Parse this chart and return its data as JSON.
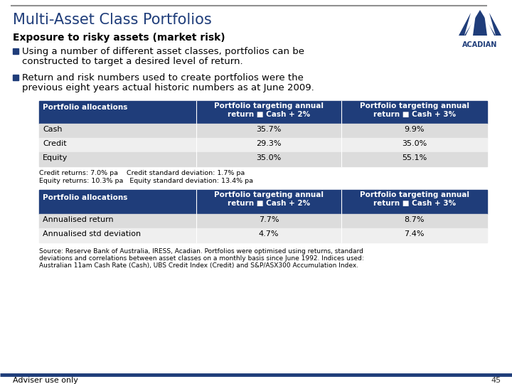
{
  "title": "Multi-Asset Class Portfolios",
  "subtitle": "Exposure to risky assets (market risk)",
  "bullet1_line1": "Using a number of different asset classes, portfolios can be",
  "bullet1_line2": "constructed to target a desired level of return.",
  "bullet2_line1": "Return and risk numbers used to create portfolios were the",
  "bullet2_line2": "previous eight years actual historic numbers as at June 2009.",
  "header_bg": "#1F3D7A",
  "header_text_color": "#FFFFFF",
  "row_bg_odd": "#DCDCDC",
  "row_bg_even": "#EFEFEF",
  "table1_header": [
    "Portfolio allocations",
    "Portfolio targeting annual\nreturn ■ Cash + 2%",
    "Portfolio targeting annual\nreturn ■ Cash + 3%"
  ],
  "table1_rows": [
    [
      "Cash",
      "35.7%",
      "9.9%"
    ],
    [
      "Credit",
      "29.3%",
      "35.0%"
    ],
    [
      "Equity",
      "35.0%",
      "55.1%"
    ]
  ],
  "notes_line1": "Credit returns: 7.0% pa    Credit standard deviation: 1.7% pa",
  "notes_line2": "Equity returns: 10.3% pa   Equity standard deviation: 13.4% pa",
  "table2_header": [
    "Portfolio allocations",
    "Portfolio targeting annual\nreturn ■ Cash + 2%",
    "Portfolio targeting annual\nreturn ■ Cash + 3%"
  ],
  "table2_rows": [
    [
      "Annualised return",
      "7.7%",
      "8.7%"
    ],
    [
      "Annualised std deviation",
      "4.7%",
      "7.4%"
    ]
  ],
  "source_line1": "Source: Reserve Bank of Australia, IRESS, Acadian. Portfolios were optimised using returns, standard",
  "source_line2": "deviations and correlations between asset classes on a monthly basis since June 1992. Indices used:",
  "source_line3": "Australian 11am Cash Rate (Cash), UBS Credit Index (Credit) and S&P/ASX300 Accumulation Index.",
  "footer_text": "Adviser use only",
  "page_number": "45",
  "title_color": "#1F3D7A",
  "subtitle_color": "#000000",
  "top_line_color": "#909090",
  "bottom_line_color": "#1F3D7A",
  "bullet_color": "#1F3D7A",
  "bg_color": "#FFFFFF"
}
